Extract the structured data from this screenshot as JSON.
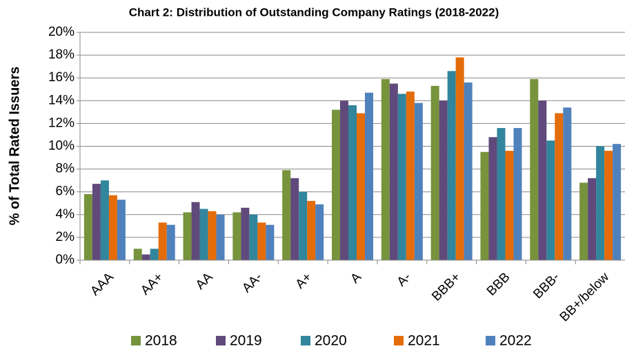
{
  "chart_data": {
    "type": "bar",
    "title": "Chart 2: Distribution of Outstanding Company Ratings (2018-2022)",
    "y_label": "% of Total Rated Issuers",
    "categories": [
      "AAA",
      "AA+",
      "AA",
      "AA-",
      "A+",
      "A",
      "A-",
      "BBB+",
      "BBB",
      "BBB-",
      "BB+/below"
    ],
    "series": [
      {
        "name": "2018",
        "color": "#77933c",
        "values": [
          5.8,
          1.0,
          4.2,
          4.2,
          7.9,
          13.2,
          15.9,
          15.3,
          9.5,
          15.9,
          6.8
        ]
      },
      {
        "name": "2019",
        "color": "#604a7b",
        "values": [
          6.7,
          0.5,
          5.1,
          4.6,
          7.2,
          14.0,
          15.5,
          14.0,
          10.8,
          14.0,
          7.2
        ]
      },
      {
        "name": "2020",
        "color": "#31859c",
        "values": [
          7.0,
          1.0,
          4.5,
          4.0,
          6.0,
          13.6,
          14.6,
          16.6,
          11.6,
          10.5,
          10.0
        ]
      },
      {
        "name": "2021",
        "color": "#e46c0a",
        "values": [
          5.7,
          3.3,
          4.3,
          3.3,
          5.2,
          12.9,
          14.8,
          17.8,
          9.6,
          12.9,
          9.6
        ]
      },
      {
        "name": "2022",
        "color": "#4f81bd",
        "values": [
          5.3,
          3.1,
          4.0,
          3.1,
          4.9,
          14.7,
          13.8,
          15.6,
          11.6,
          13.4,
          10.2
        ]
      }
    ],
    "ylim": [
      0,
      20
    ],
    "yticks": [
      {
        "value": 0,
        "label": "0%"
      },
      {
        "value": 2,
        "label": "2%"
      },
      {
        "value": 4,
        "label": "4%"
      },
      {
        "value": 6,
        "label": "6%"
      },
      {
        "value": 8,
        "label": "8%"
      },
      {
        "value": 10,
        "label": "10%"
      },
      {
        "value": 12,
        "label": "12%"
      },
      {
        "value": 14,
        "label": "14%"
      },
      {
        "value": 16,
        "label": "16%"
      },
      {
        "value": 18,
        "label": "18%"
      },
      {
        "value": 20,
        "label": "20%"
      }
    ],
    "grid": true,
    "legend": "bottom"
  }
}
